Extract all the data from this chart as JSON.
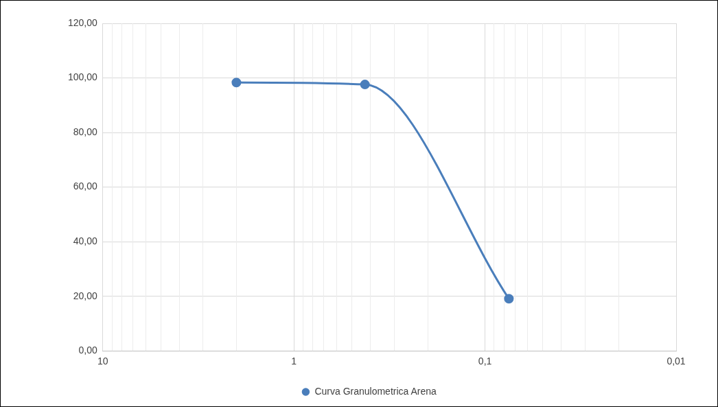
{
  "chart_data": {
    "type": "line",
    "x": [
      2,
      0.425,
      0.075
    ],
    "series": [
      {
        "name": "Curva Granulometrica Arena",
        "color": "#4a7ebb",
        "values": [
          98.3,
          97.6,
          19.1
        ]
      }
    ],
    "log": "x",
    "xlim": [
      10,
      0.01
    ],
    "xticks": [
      10,
      1,
      {
        "value": 0.1,
        "label": "0,1"
      },
      {
        "value": 0.01,
        "label": "0,01"
      }
    ],
    "ylim": [
      0,
      120
    ],
    "yticks": [
      {
        "value": 0,
        "label": "0,00"
      },
      {
        "value": 20,
        "label": "20,00"
      },
      {
        "value": 40,
        "label": "40,00"
      },
      {
        "value": 60,
        "label": "60,00"
      },
      {
        "value": 80,
        "label": "80,00"
      },
      {
        "value": 100,
        "label": "100,00"
      },
      {
        "value": 120,
        "label": "120,00"
      }
    ],
    "grid": true,
    "legend": "bottom",
    "marker": "circle",
    "line_style": "solid"
  }
}
